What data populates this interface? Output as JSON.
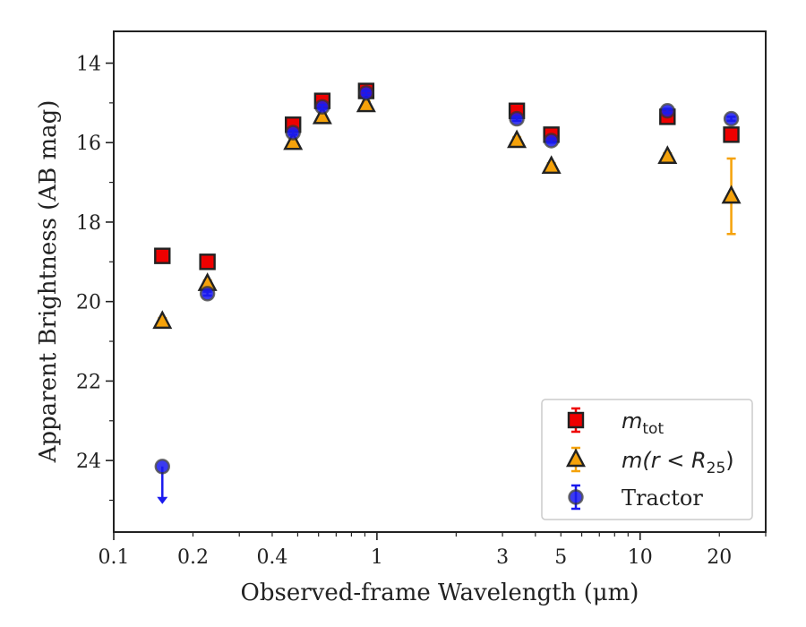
{
  "chart_data": {
    "type": "scatter",
    "xlabel": "Observed-frame Wavelength (μm)",
    "ylabel": "Apparent Brightness (AB mag)",
    "xscale": "log",
    "xlim": [
      0.1,
      30
    ],
    "ylim": [
      25.8,
      13.2
    ],
    "y_inverted": true,
    "x_ticks": [
      {
        "value": 0.1,
        "label": "0.1"
      },
      {
        "value": 0.2,
        "label": "0.2"
      },
      {
        "value": 0.4,
        "label": "0.4"
      },
      {
        "value": 1,
        "label": "1"
      },
      {
        "value": 3,
        "label": "3"
      },
      {
        "value": 5,
        "label": "5"
      },
      {
        "value": 10,
        "label": "10"
      },
      {
        "value": 20,
        "label": "20"
      }
    ],
    "y_ticks": [
      {
        "value": 14,
        "label": "14"
      },
      {
        "value": 16,
        "label": "16"
      },
      {
        "value": 18,
        "label": "18"
      },
      {
        "value": 20,
        "label": "20"
      },
      {
        "value": 22,
        "label": "22"
      },
      {
        "value": 24,
        "label": "24"
      }
    ],
    "grid": false,
    "legend_position": "bottom-right",
    "series": [
      {
        "name": "m_tot",
        "legend_main": "m",
        "legend_sub": "tot",
        "marker": "square",
        "color": "#ee0000",
        "points": [
          {
            "x": 0.153,
            "y": 18.85,
            "err": 0.1
          },
          {
            "x": 0.227,
            "y": 19.0,
            "err": 0.1
          },
          {
            "x": 0.48,
            "y": 15.55,
            "err": 0.1
          },
          {
            "x": 0.62,
            "y": 14.95,
            "err": 0.1
          },
          {
            "x": 0.91,
            "y": 14.7,
            "err": 0.1
          },
          {
            "x": 3.4,
            "y": 15.2,
            "err": 0.1
          },
          {
            "x": 4.6,
            "y": 15.8,
            "err": 0.1
          },
          {
            "x": 12.7,
            "y": 15.35,
            "err": 0.1
          },
          {
            "x": 22.2,
            "y": 15.8,
            "err": 0.1
          }
        ]
      },
      {
        "name": "m(r < R_25)",
        "legend_main": "m(r < R",
        "legend_sub": "25",
        "legend_tail": ")",
        "marker": "triangle",
        "color": "#f5a20a",
        "points": [
          {
            "x": 0.153,
            "y": 20.5,
            "err": 0.08
          },
          {
            "x": 0.227,
            "y": 19.55,
            "err": 0.08
          },
          {
            "x": 0.48,
            "y": 16.0,
            "err": 0.08
          },
          {
            "x": 0.62,
            "y": 15.35,
            "err": 0.08
          },
          {
            "x": 0.91,
            "y": 15.05,
            "err": 0.08
          },
          {
            "x": 3.4,
            "y": 15.95,
            "err": 0.08
          },
          {
            "x": 4.6,
            "y": 16.6,
            "err": 0.08
          },
          {
            "x": 12.7,
            "y": 16.35,
            "err": 0.08
          },
          {
            "x": 22.2,
            "y": 17.35,
            "err": 0.95
          }
        ]
      },
      {
        "name": "Tractor",
        "legend_main": "Tractor",
        "marker": "circle",
        "color": "#1a1aee",
        "points": [
          {
            "x": 0.153,
            "y": 24.15,
            "err": 0.0,
            "upper_limit": true
          },
          {
            "x": 0.227,
            "y": 19.8,
            "err": 0.05
          },
          {
            "x": 0.48,
            "y": 15.75,
            "err": 0.05
          },
          {
            "x": 0.62,
            "y": 15.1,
            "err": 0.05
          },
          {
            "x": 0.91,
            "y": 14.75,
            "err": 0.05
          },
          {
            "x": 3.4,
            "y": 15.4,
            "err": 0.05
          },
          {
            "x": 4.6,
            "y": 15.95,
            "err": 0.05
          },
          {
            "x": 12.7,
            "y": 15.2,
            "err": 0.05
          },
          {
            "x": 22.2,
            "y": 15.4,
            "err": 0.05
          }
        ]
      }
    ]
  }
}
